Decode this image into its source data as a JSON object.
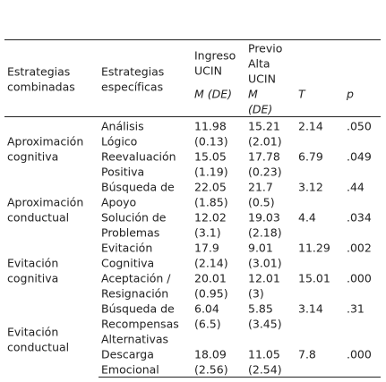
{
  "table": {
    "headers": {
      "combined": [
        "Estrategias",
        "combinadas"
      ],
      "specific": [
        "Estrategias",
        "específicas"
      ],
      "admission": [
        "Ingreso",
        "UCIN"
      ],
      "admission_stat": "M (DE)",
      "discharge": [
        "Previo",
        "Alta",
        "UCIN"
      ],
      "discharge_stat": [
        "M",
        "(DE)"
      ],
      "t": "T",
      "p": "p"
    },
    "groups": [
      {
        "label": [
          "Aproximación",
          "cognitiva"
        ],
        "rows": [
          {
            "strategy": [
              "Análisis",
              "Lógico"
            ],
            "admission_mean": "11.98",
            "admission_sd": "(0.13)",
            "discharge_mean": "15.21",
            "discharge_sd": "(2.01)",
            "t": "2.14",
            "p": ".050"
          },
          {
            "strategy": [
              "Reevaluación",
              "Positiva"
            ],
            "admission_mean": "15.05",
            "admission_sd": "(1.19)",
            "discharge_mean": "17.78",
            "discharge_sd": "(0.23)",
            "t": "6.79",
            "p": ".049"
          }
        ]
      },
      {
        "label": [
          "Aproximación",
          "conductual"
        ],
        "rows": [
          {
            "strategy": [
              "Búsqueda de",
              "Apoyo"
            ],
            "admission_mean": "22.05",
            "admission_sd": "(1.85)",
            "discharge_mean": "21.7",
            "discharge_sd": "(0.5)",
            "t": "3.12",
            "p": ".44"
          },
          {
            "strategy": [
              "Solución de",
              "Problemas"
            ],
            "admission_mean": "12.02",
            "admission_sd": "(3.1)",
            "discharge_mean": "19.03",
            "discharge_sd": "(2.18)",
            "t": "4.4",
            "p": ".034"
          }
        ]
      },
      {
        "label": [
          "Evitación",
          "cognitiva"
        ],
        "rows": [
          {
            "strategy": [
              "Evitación",
              "Cognitiva"
            ],
            "admission_mean": "17.9",
            "admission_sd": "(2.14)",
            "discharge_mean": "9.01",
            "discharge_sd": "(3.01)",
            "t": "11.29",
            "p": ".002"
          },
          {
            "strategy": [
              "Aceptación /",
              "Resignación"
            ],
            "admission_mean": "20.01",
            "admission_sd": "(0.95)",
            "discharge_mean": "12.01",
            "discharge_sd": "(3)",
            "t": "15.01",
            "p": ".000"
          }
        ]
      },
      {
        "label": [
          "Evitación",
          "conductual"
        ],
        "rows": [
          {
            "strategy": [
              "Búsqueda de",
              "Recompensas",
              "Alternativas"
            ],
            "admission_mean": "6.04",
            "admission_sd": "(6.5)",
            "discharge_mean": "5.85",
            "discharge_sd": "(3.45)",
            "t": "3.14",
            "p": ".31"
          },
          {
            "strategy": [
              "Descarga",
              "Emocional"
            ],
            "admission_mean": "18.09",
            "admission_sd": "(2.56)",
            "discharge_mean": "11.05",
            "discharge_sd": "(2.54)",
            "t": "7.8",
            "p": ".000"
          }
        ]
      }
    ]
  }
}
